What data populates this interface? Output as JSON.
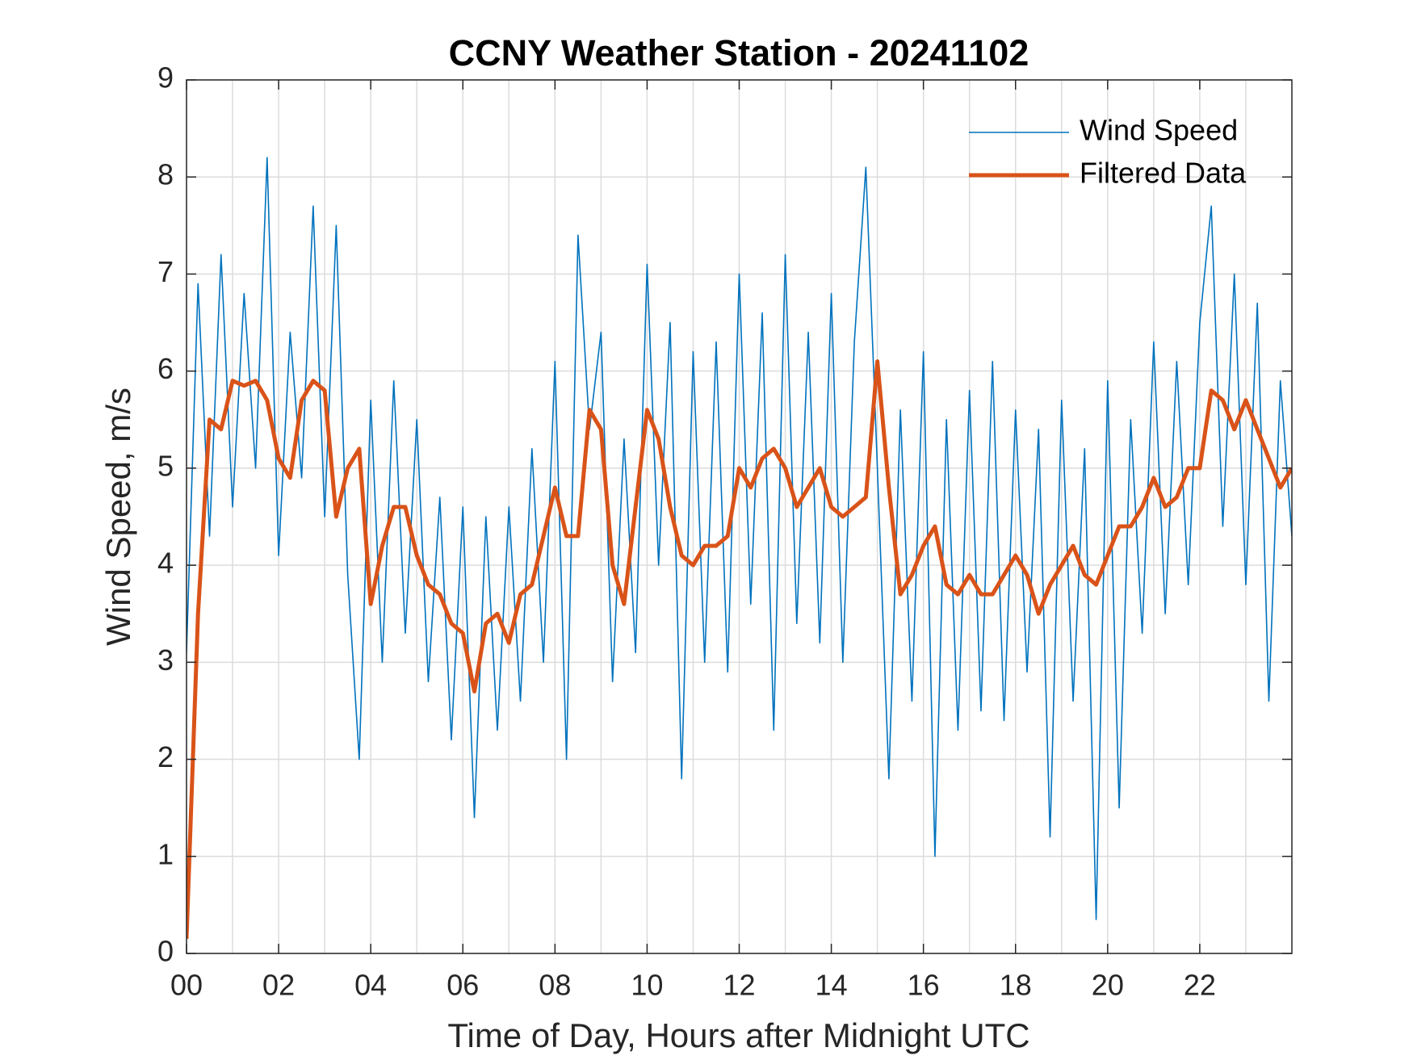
{
  "chart_data": {
    "type": "line",
    "title": "CCNY Weather Station - 20241102",
    "xlabel": "Time of Day, Hours after Midnight UTC",
    "ylabel": "Wind Speed, m/s",
    "xlim": [
      0,
      24
    ],
    "ylim": [
      0,
      9
    ],
    "xticks": [
      {
        "value": 0,
        "label": "00"
      },
      {
        "value": 2,
        "label": "02"
      },
      {
        "value": 4,
        "label": "04"
      },
      {
        "value": 6,
        "label": "06"
      },
      {
        "value": 8,
        "label": "08"
      },
      {
        "value": 10,
        "label": "10"
      },
      {
        "value": 12,
        "label": "12"
      },
      {
        "value": 14,
        "label": "14"
      },
      {
        "value": 16,
        "label": "16"
      },
      {
        "value": 18,
        "label": "18"
      },
      {
        "value": 20,
        "label": "20"
      },
      {
        "value": 22,
        "label": "22"
      }
    ],
    "xminorticks": [
      1,
      3,
      5,
      7,
      9,
      11,
      13,
      15,
      17,
      19,
      21,
      23
    ],
    "yticks": [
      0,
      1,
      2,
      3,
      4,
      5,
      6,
      7,
      8,
      9
    ],
    "grid": true,
    "legend": "upper right",
    "x": [
      0,
      0.25,
      0.5,
      0.75,
      1,
      1.25,
      1.5,
      1.75,
      2,
      2.25,
      2.5,
      2.75,
      3,
      3.25,
      3.5,
      3.75,
      4,
      4.25,
      4.5,
      4.75,
      5,
      5.25,
      5.5,
      5.75,
      6,
      6.25,
      6.5,
      6.75,
      7,
      7.25,
      7.5,
      7.75,
      8,
      8.25,
      8.5,
      8.75,
      9,
      9.25,
      9.5,
      9.75,
      10,
      10.25,
      10.5,
      10.75,
      11,
      11.25,
      11.5,
      11.75,
      12,
      12.25,
      12.5,
      12.75,
      13,
      13.25,
      13.5,
      13.75,
      14,
      14.25,
      14.5,
      14.75,
      15,
      15.25,
      15.5,
      15.75,
      16,
      16.25,
      16.5,
      16.75,
      17,
      17.25,
      17.5,
      17.75,
      18,
      18.25,
      18.5,
      18.75,
      19,
      19.25,
      19.5,
      19.75,
      20,
      20.25,
      20.5,
      20.75,
      21,
      21.25,
      21.5,
      21.75,
      22,
      22.25,
      22.5,
      22.75,
      23,
      23.25,
      23.5,
      23.75,
      24
    ],
    "series": [
      {
        "name": "Wind Speed",
        "color": "#0072BD",
        "width": 1.6,
        "values": [
          3.1,
          6.9,
          4.3,
          7.2,
          4.6,
          6.8,
          5.0,
          8.2,
          4.1,
          6.4,
          4.9,
          7.7,
          4.5,
          7.5,
          3.9,
          2.0,
          5.7,
          3.0,
          5.9,
          3.3,
          5.5,
          2.8,
          4.7,
          2.2,
          4.6,
          1.4,
          4.5,
          2.3,
          4.6,
          2.6,
          5.2,
          3.0,
          6.1,
          2.0,
          7.4,
          5.4,
          6.4,
          2.8,
          5.3,
          3.1,
          7.1,
          4.0,
          6.5,
          1.8,
          6.2,
          3.0,
          6.3,
          2.9,
          7.0,
          3.6,
          6.6,
          2.3,
          7.2,
          3.4,
          6.4,
          3.2,
          6.8,
          3.0,
          6.3,
          8.1,
          5.0,
          1.8,
          5.6,
          2.6,
          6.2,
          1.0,
          5.5,
          2.3,
          5.8,
          2.5,
          6.1,
          2.4,
          5.6,
          2.9,
          5.4,
          1.2,
          5.7,
          2.6,
          5.2,
          0.35,
          5.9,
          1.5,
          5.5,
          3.3,
          6.3,
          3.5,
          6.1,
          3.8,
          6.5,
          7.7,
          4.4,
          7.0,
          3.8,
          6.7,
          2.6,
          5.9,
          4.3
        ]
      },
      {
        "name": "Filtered Data",
        "color": "#D95319",
        "width": 5,
        "values": [
          0.15,
          3.5,
          5.5,
          5.4,
          5.9,
          5.85,
          5.9,
          5.7,
          5.1,
          4.9,
          5.7,
          5.9,
          5.8,
          4.5,
          5.0,
          5.2,
          3.6,
          4.2,
          4.6,
          4.6,
          4.1,
          3.8,
          3.7,
          3.4,
          3.3,
          2.7,
          3.4,
          3.5,
          3.2,
          3.7,
          3.8,
          4.3,
          4.8,
          4.3,
          4.3,
          5.6,
          5.4,
          4.0,
          3.6,
          4.6,
          5.6,
          5.3,
          4.6,
          4.1,
          4.0,
          4.2,
          4.2,
          4.3,
          5.0,
          4.8,
          5.1,
          5.2,
          5.0,
          4.6,
          4.8,
          5.0,
          4.6,
          4.5,
          4.6,
          4.7,
          6.1,
          4.8,
          3.7,
          3.9,
          4.2,
          4.4,
          3.8,
          3.7,
          3.9,
          3.7,
          3.7,
          3.9,
          4.1,
          3.9,
          3.5,
          3.8,
          4.0,
          4.2,
          3.9,
          3.8,
          4.1,
          4.4,
          4.4,
          4.6,
          4.9,
          4.6,
          4.7,
          5.0,
          5.0,
          5.8,
          5.7,
          5.4,
          5.7,
          5.4,
          5.1,
          4.8,
          5.0
        ]
      }
    ]
  }
}
